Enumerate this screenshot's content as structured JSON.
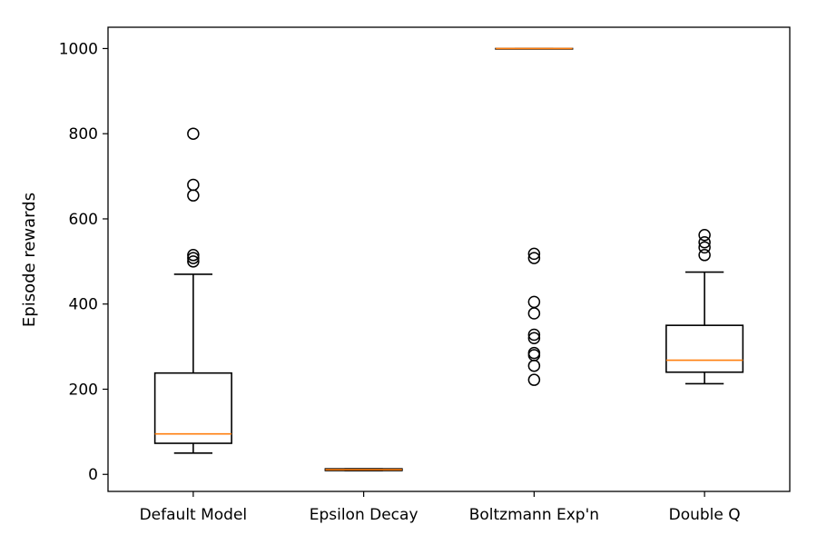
{
  "chart_data": {
    "type": "box",
    "title": "",
    "xlabel": "",
    "ylabel": "Episode rewards",
    "ylim": [
      -40,
      1050
    ],
    "yticks": [
      0,
      200,
      400,
      600,
      800,
      1000
    ],
    "grid": false,
    "median_color": "#ff7f0e",
    "box_color": "#000000",
    "categories": [
      "Default Model",
      "Epsilon Decay",
      "Boltzmann Exp'n",
      "Double Q"
    ],
    "boxes": [
      {
        "whisker_low": 50,
        "q1": 73,
        "median": 95,
        "q3": 238,
        "whisker_high": 470,
        "outliers": [
          500,
          508,
          515,
          655,
          680,
          800
        ]
      },
      {
        "whisker_low": 9,
        "q1": 9,
        "median": 11,
        "q3": 13,
        "whisker_high": 13,
        "outliers": []
      },
      {
        "whisker_low": 1000,
        "q1": 1000,
        "median": 1000,
        "q3": 1000,
        "whisker_high": 1000,
        "outliers": [
          222,
          255,
          280,
          285,
          320,
          328,
          378,
          405,
          508,
          518
        ]
      },
      {
        "whisker_low": 213,
        "q1": 240,
        "median": 268,
        "q3": 350,
        "whisker_high": 475,
        "outliers": [
          515,
          533,
          545,
          562
        ]
      }
    ]
  }
}
